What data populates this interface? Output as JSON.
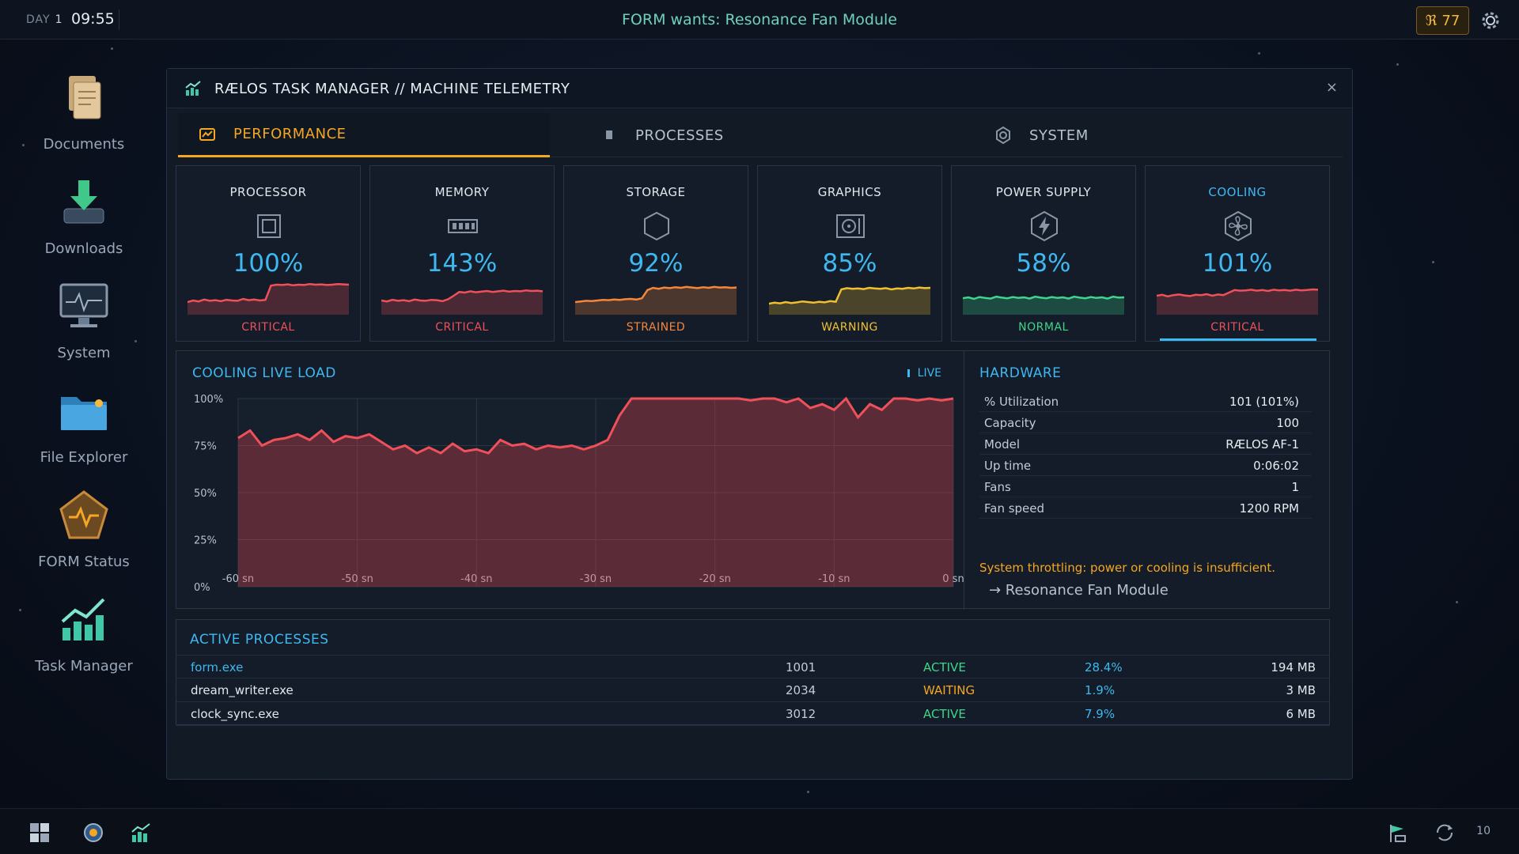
{
  "topbar": {
    "day_label": "DAY",
    "day_number": "1",
    "time": "09:55",
    "goal_text": "FORM wants: Resonance Fan Module",
    "credits_symbol": "ℜ",
    "credits": "77"
  },
  "desktop": [
    {
      "label": "Documents",
      "icon": "documents-icon"
    },
    {
      "label": "Downloads",
      "icon": "downloads-icon"
    },
    {
      "label": "System",
      "icon": "system-monitor-icon"
    },
    {
      "label": "File Explorer",
      "icon": "folder-icon"
    },
    {
      "label": "FORM Status",
      "icon": "form-status-icon"
    },
    {
      "label": "Task Manager",
      "icon": "task-manager-icon"
    }
  ],
  "window": {
    "title": "RÆLOS TASK MANAGER // MACHINE TELEMETRY",
    "close": "×",
    "tabs": [
      {
        "label": "PERFORMANCE",
        "active": true
      },
      {
        "label": "PROCESSES",
        "active": false
      },
      {
        "label": "SYSTEM",
        "active": false
      }
    ]
  },
  "metrics": [
    {
      "name": "PROCESSOR",
      "value": "100%",
      "status": "CRITICAL",
      "color": "#f0505a",
      "spark": [
        40,
        45,
        42,
        48,
        44,
        46,
        43,
        47,
        45,
        44,
        50,
        46,
        48,
        45,
        47,
        92,
        95,
        94,
        96,
        93,
        95,
        94,
        97,
        95,
        96,
        94,
        95,
        97,
        96,
        95
      ]
    },
    {
      "name": "MEMORY",
      "value": "143%",
      "status": "CRITICAL",
      "color": "#f0505a",
      "spark": [
        45,
        42,
        47,
        44,
        46,
        43,
        48,
        45,
        44,
        47,
        46,
        43,
        49,
        60,
        72,
        70,
        74,
        71,
        73,
        75,
        72,
        74,
        76,
        73,
        75,
        74,
        77,
        75,
        76,
        74
      ]
    },
    {
      "name": "STORAGE",
      "value": "92%",
      "status": "STRAINED",
      "color": "#f5863a",
      "spark": [
        40,
        42,
        44,
        43,
        45,
        47,
        46,
        48,
        47,
        49,
        50,
        48,
        52,
        78,
        85,
        82,
        86,
        84,
        87,
        85,
        88,
        86,
        84,
        87,
        85,
        88,
        86,
        87,
        85,
        86
      ]
    },
    {
      "name": "GRAPHICS",
      "value": "85%",
      "status": "WARNING",
      "color": "#f0c030",
      "spark": [
        35,
        38,
        36,
        40,
        37,
        39,
        42,
        40,
        38,
        41,
        39,
        43,
        41,
        80,
        84,
        82,
        83,
        81,
        85,
        83,
        82,
        84,
        80,
        83,
        82,
        85,
        83,
        86,
        84,
        85
      ]
    },
    {
      "name": "POWER SUPPLY",
      "value": "58%",
      "status": "NORMAL",
      "color": "#3fd68a",
      "spark": [
        52,
        55,
        50,
        56,
        53,
        51,
        57,
        54,
        52,
        56,
        53,
        55,
        51,
        57,
        54,
        52,
        56,
        53,
        55,
        51,
        57,
        54,
        52,
        56,
        53,
        55,
        51,
        57,
        54,
        55
      ]
    },
    {
      "name": "COOLING",
      "value": "101%",
      "status": "CRITICAL",
      "color": "#f0505a",
      "spark": [
        60,
        63,
        58,
        62,
        64,
        61,
        59,
        63,
        62,
        65,
        60,
        64,
        62,
        70,
        78,
        76,
        77,
        79,
        76,
        78,
        75,
        79,
        77,
        78,
        76,
        79,
        77,
        78,
        80,
        79
      ]
    }
  ],
  "chart_data": {
    "type": "area",
    "title": "COOLING LIVE LOAD",
    "live_label": "LIVE",
    "xlabel": "",
    "ylabel": "",
    "ylim": [
      0,
      100
    ],
    "y_ticks": [
      "0%",
      "25%",
      "50%",
      "75%",
      "100%"
    ],
    "x_ticks": [
      "-60 sn",
      "-50 sn",
      "-40 sn",
      "-30 sn",
      "-20 sn",
      "-10 sn",
      "0 sn"
    ],
    "x": [
      -60,
      -59,
      -58,
      -57,
      -56,
      -55,
      -54,
      -53,
      -52,
      -51,
      -50,
      -49,
      -48,
      -47,
      -46,
      -45,
      -44,
      -43,
      -42,
      -41,
      -40,
      -39,
      -38,
      -37,
      -36,
      -35,
      -34,
      -33,
      -32,
      -31,
      -30,
      -29,
      -28,
      -27,
      -26,
      -25,
      -24,
      -23,
      -22,
      -21,
      -20,
      -19,
      -18,
      -17,
      -16,
      -15,
      -14,
      -13,
      -12,
      -11,
      -10,
      -9,
      -8,
      -7,
      -6,
      -5,
      -4,
      -3,
      -2,
      -1,
      0
    ],
    "series": [
      {
        "values": [
          79,
          83,
          75,
          78,
          79,
          81,
          78,
          83,
          77,
          80,
          79,
          81,
          77,
          73,
          75,
          71,
          74,
          71,
          76,
          72,
          73,
          71,
          78,
          75,
          76,
          73,
          75,
          74,
          75,
          73,
          75,
          78,
          91,
          100,
          100,
          100,
          100,
          100,
          100,
          100,
          100,
          100,
          100,
          99,
          100,
          100,
          98,
          100,
          95,
          97,
          94,
          100,
          90,
          97,
          94,
          100,
          100,
          99,
          100,
          99,
          100
        ]
      }
    ]
  },
  "hardware": {
    "title": "HARDWARE",
    "rows": [
      {
        "key": "% Utilization",
        "value": "101  (101%)"
      },
      {
        "key": "Capacity",
        "value": "100"
      },
      {
        "key": "Model",
        "value": "RÆLOS AF-1"
      },
      {
        "key": "Up time",
        "value": "0:06:02"
      },
      {
        "key": "Fans",
        "value": "1"
      },
      {
        "key": "Fan speed",
        "value": "1200 RPM"
      }
    ],
    "warning": "System throttling: power or cooling is insufficient.",
    "link": "→ Resonance Fan Module"
  },
  "processes": {
    "title": "ACTIVE PROCESSES",
    "rows": [
      {
        "name": "form.exe",
        "pid": "1001",
        "status": "ACTIVE",
        "cpu": "28.4%",
        "mem": "194 MB",
        "highlight": true
      },
      {
        "name": "dream_writer.exe",
        "pid": "2034",
        "status": "WAITING",
        "cpu": "1.9%",
        "mem": "3 MB",
        "highlight": false
      },
      {
        "name": "clock_sync.exe",
        "pid": "3012",
        "status": "ACTIVE",
        "cpu": "7.9%",
        "mem": "6 MB",
        "highlight": false
      }
    ],
    "status_colors": {
      "ACTIVE": "#3fd68a",
      "WAITING": "#f5a623"
    }
  },
  "taskbar": {
    "tray_number": "10"
  }
}
